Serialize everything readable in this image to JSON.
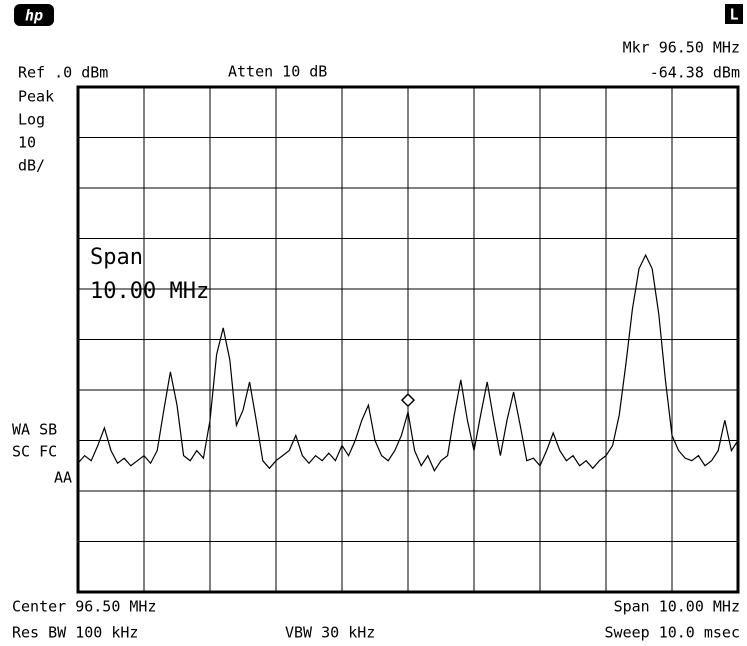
{
  "chart_data": {
    "type": "line",
    "labels": {
      "logo": "hp",
      "mode": "L",
      "marker_freq": "Mkr 96.50 MHz",
      "marker_level": "-64.38 dBm",
      "ref": "Ref .0 dBm",
      "atten": "Atten 10 dB",
      "detector": "Peak",
      "scale": "Log",
      "scale_value": "10",
      "scale_unit": "dB/",
      "span_title": "Span",
      "span_value": "10.00 MHz",
      "flags1": "WA SB",
      "flags2": "SC FC",
      "flags3": "AA",
      "center": "Center 96.50 MHz",
      "span": "Span 10.00 MHz",
      "rbw": "Res BW 100 kHz",
      "vbw": "VBW 30 kHz",
      "sweep": "Sweep 10.0 msec"
    },
    "xlim": [
      91.5,
      101.5
    ],
    "ylim": [
      -100,
      0
    ],
    "xticks": [
      91.5,
      92.5,
      93.5,
      94.5,
      95.5,
      96.5,
      97.5,
      98.5,
      99.5,
      100.5,
      101.5
    ],
    "yticks": [
      -100,
      -90,
      -80,
      -70,
      -60,
      -50,
      -40,
      -30,
      -20,
      -10,
      0
    ],
    "grid": true,
    "marker": {
      "x": 96.5,
      "y": -64.38
    },
    "x": [
      91.5,
      91.6,
      91.7,
      91.8,
      91.9,
      92.0,
      92.1,
      92.2,
      92.3,
      92.4,
      92.5,
      92.6,
      92.7,
      92.8,
      92.9,
      93.0,
      93.1,
      93.2,
      93.3,
      93.4,
      93.5,
      93.6,
      93.7,
      93.8,
      93.9,
      94.0,
      94.1,
      94.2,
      94.3,
      94.4,
      94.5,
      94.6,
      94.7,
      94.8,
      94.9,
      95.0,
      95.1,
      95.2,
      95.3,
      95.4,
      95.5,
      95.6,
      95.7,
      95.8,
      95.9,
      96.0,
      96.1,
      96.2,
      96.3,
      96.4,
      96.5,
      96.6,
      96.7,
      96.8,
      96.9,
      97.0,
      97.1,
      97.2,
      97.3,
      97.4,
      97.5,
      97.6,
      97.7,
      97.8,
      97.9,
      98.0,
      98.1,
      98.2,
      98.3,
      98.4,
      98.5,
      98.6,
      98.7,
      98.8,
      98.9,
      99.0,
      99.1,
      99.2,
      99.3,
      99.4,
      99.5,
      99.6,
      99.7,
      99.8,
      99.9,
      100.0,
      100.1,
      100.2,
      100.3,
      100.4,
      100.5,
      100.6,
      100.7,
      100.8,
      100.9,
      101.0,
      101.1,
      101.2,
      101.3,
      101.4,
      101.5
    ],
    "series": [
      {
        "color": "#000000",
        "values": [
          -74.5,
          -73,
          -74,
          -71,
          -67.5,
          -72,
          -74.5,
          -73.5,
          -75,
          -74,
          -73,
          -74.5,
          -72,
          -64,
          -56.4,
          -63,
          -73,
          -74,
          -72,
          -73.5,
          -66,
          -53,
          -47.7,
          -54,
          -67,
          -64,
          -58.4,
          -66,
          -74,
          -75.5,
          -74,
          -73,
          -72,
          -69,
          -73,
          -74.5,
          -73,
          -74,
          -72.5,
          -74,
          -71,
          -73,
          -70,
          -66,
          -63,
          -70,
          -73,
          -74,
          -72,
          -69,
          -64.38,
          -72,
          -75,
          -73,
          -76,
          -74,
          -73,
          -65,
          -58,
          -66,
          -72,
          -65,
          -58.4,
          -66,
          -73,
          -66,
          -60.4,
          -67,
          -74,
          -73.5,
          -75,
          -72,
          -68.5,
          -72,
          -74,
          -73,
          -75,
          -74,
          -75.5,
          -74,
          -73,
          -71,
          -65,
          -55,
          -44,
          -36,
          -33.3,
          -36,
          -45,
          -58,
          -69,
          -72,
          -73.5,
          -74,
          -73,
          -75,
          -74,
          -72,
          -66,
          -72,
          -70
        ]
      }
    ]
  }
}
